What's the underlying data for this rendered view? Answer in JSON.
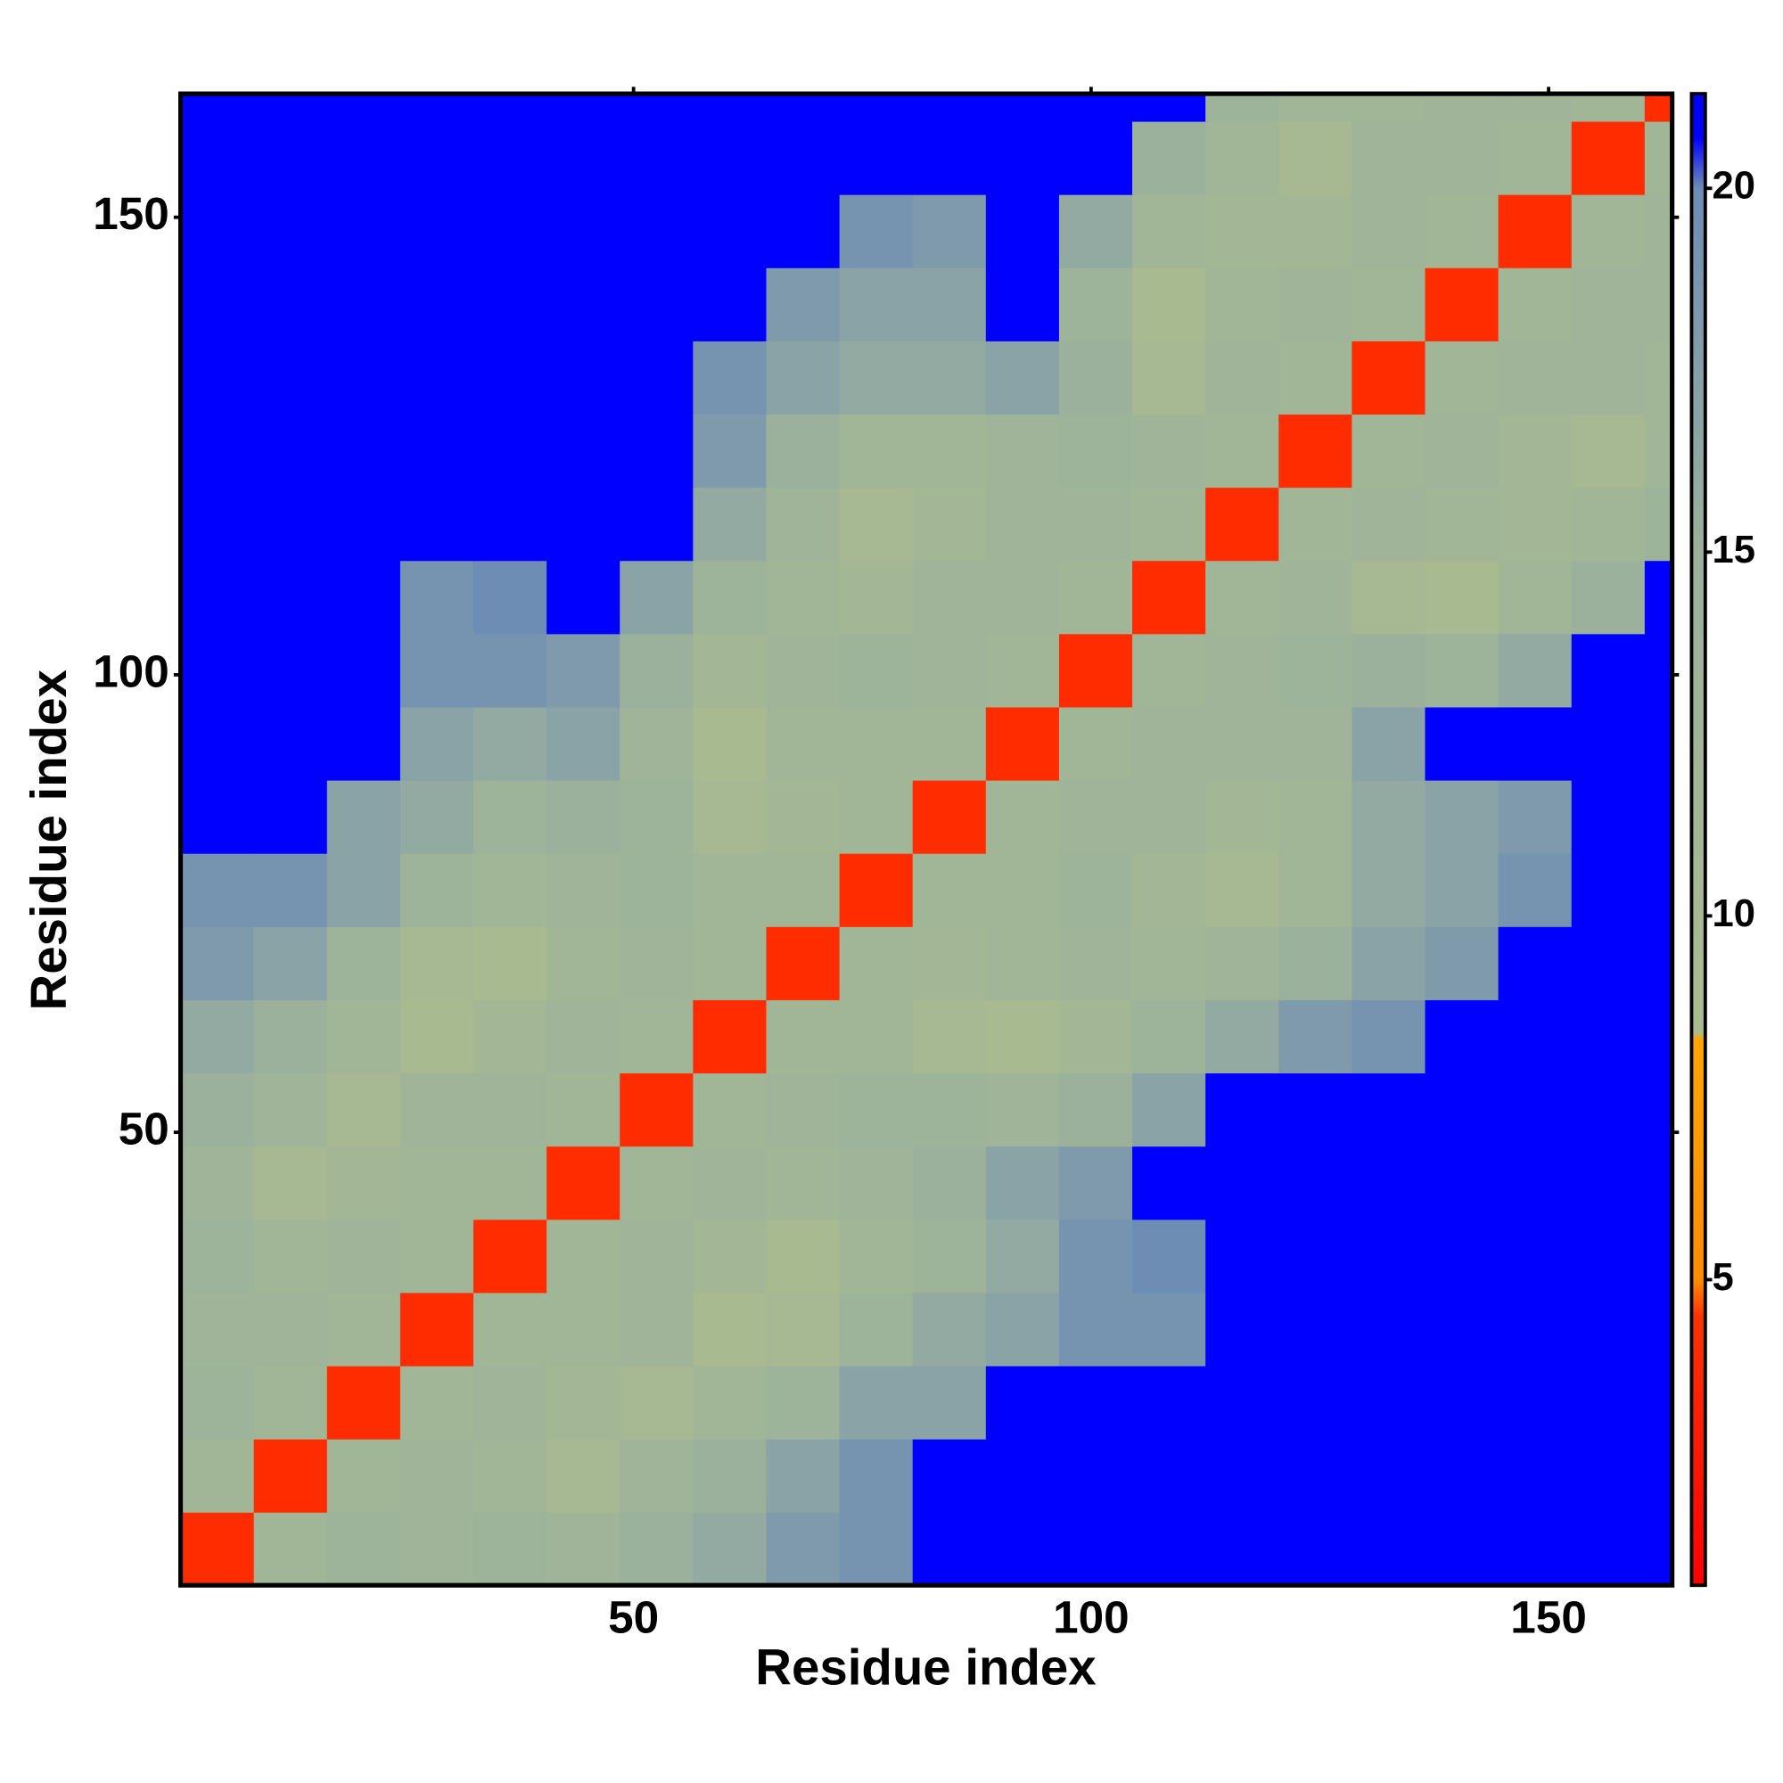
{
  "chart_data": {
    "type": "heatmap",
    "xlabel": "Residue index",
    "ylabel": "Residue index",
    "xlim": [
      0.5,
      163.5
    ],
    "ylim": [
      0.5,
      163.5
    ],
    "xticks": [
      50,
      100,
      150
    ],
    "yticks": [
      50,
      100,
      150
    ],
    "xbins": [
      0.5,
      8.5,
      16.5,
      24.5,
      32.5,
      40.5,
      48.5,
      56.5,
      64.5,
      72.5,
      80.5,
      88.5,
      96.5,
      104.5,
      112.5,
      120.5,
      128.5,
      136.5,
      144.5,
      152.5,
      160.5,
      163.5
    ],
    "ybins": [
      0.5,
      8.5,
      16.5,
      24.5,
      32.5,
      40.5,
      48.5,
      56.5,
      64.5,
      72.5,
      80.5,
      88.5,
      96.5,
      104.5,
      112.5,
      120.5,
      128.5,
      136.5,
      144.5,
      152.5,
      160.5,
      163.5
    ],
    "values": [
      [
        4,
        12,
        14,
        13,
        14,
        13,
        15,
        16,
        18,
        19,
        21,
        21,
        21,
        21,
        21,
        21,
        21,
        21,
        21,
        21,
        21
      ],
      [
        12,
        4,
        12,
        13,
        12,
        10,
        13,
        15,
        17,
        19,
        21,
        21,
        21,
        21,
        21,
        21,
        21,
        21,
        21,
        21,
        21
      ],
      [
        14,
        12,
        4,
        12,
        13,
        11,
        10,
        12,
        14,
        17,
        17,
        21,
        21,
        21,
        21,
        21,
        21,
        21,
        21,
        21,
        21
      ],
      [
        13,
        13,
        12,
        4,
        12,
        12,
        13,
        9,
        10,
        14,
        16,
        17,
        19,
        19,
        21,
        21,
        21,
        21,
        21,
        21,
        21
      ],
      [
        14,
        12,
        13,
        12,
        4,
        12,
        13,
        11,
        9,
        12,
        14,
        16,
        19,
        20,
        21,
        21,
        21,
        21,
        21,
        21,
        21
      ],
      [
        13,
        10,
        11,
        12,
        12,
        4,
        12,
        13,
        12,
        13,
        15,
        17,
        18,
        21,
        21,
        21,
        21,
        21,
        21,
        21,
        21
      ],
      [
        15,
        13,
        10,
        13,
        13,
        12,
        4,
        12,
        13,
        14,
        14,
        13,
        15,
        17,
        21,
        21,
        21,
        21,
        21,
        21,
        21
      ],
      [
        16,
        15,
        12,
        9,
        11,
        13,
        12,
        4,
        12,
        12,
        10,
        9,
        11,
        14,
        16,
        18,
        19,
        21,
        21,
        21,
        21
      ],
      [
        18,
        17,
        14,
        10,
        9,
        12,
        13,
        12,
        4,
        12,
        11,
        12,
        13,
        12,
        13,
        15,
        17,
        18,
        21,
        21,
        21
      ],
      [
        19,
        19,
        17,
        14,
        12,
        13,
        14,
        12,
        12,
        4,
        12,
        12,
        14,
        11,
        10,
        12,
        16,
        17,
        19,
        21,
        21
      ],
      [
        21,
        21,
        17,
        16,
        14,
        15,
        14,
        10,
        11,
        12,
        4,
        12,
        13,
        13,
        11,
        12,
        16,
        17,
        18,
        21,
        21
      ],
      [
        21,
        21,
        21,
        17,
        16,
        17,
        13,
        9,
        12,
        12,
        12,
        4,
        12,
        13,
        13,
        13,
        17,
        21,
        21,
        21,
        21
      ],
      [
        21,
        21,
        21,
        19,
        19,
        18,
        15,
        11,
        13,
        14,
        13,
        12,
        4,
        12,
        13,
        14,
        15,
        14,
        16,
        21,
        21
      ],
      [
        21,
        21,
        21,
        19,
        20,
        21,
        17,
        14,
        12,
        11,
        13,
        13,
        12,
        4,
        12,
        13,
        10,
        9,
        12,
        15,
        21
      ],
      [
        21,
        21,
        21,
        21,
        21,
        21,
        21,
        16,
        13,
        10,
        11,
        13,
        13,
        12,
        4,
        12,
        13,
        12,
        11,
        12,
        14
      ],
      [
        21,
        21,
        21,
        21,
        21,
        21,
        21,
        18,
        15,
        12,
        12,
        13,
        14,
        13,
        12,
        4,
        12,
        13,
        11,
        10,
        12
      ],
      [
        21,
        21,
        21,
        21,
        21,
        21,
        21,
        19,
        17,
        16,
        16,
        17,
        15,
        10,
        13,
        12,
        4,
        12,
        13,
        13,
        12
      ],
      [
        21,
        21,
        21,
        21,
        21,
        21,
        21,
        21,
        18,
        17,
        17,
        21,
        14,
        9,
        12,
        13,
        12,
        4,
        12,
        13,
        13
      ],
      [
        21,
        21,
        21,
        21,
        21,
        21,
        21,
        21,
        21,
        19,
        18,
        21,
        16,
        12,
        11,
        11,
        13,
        12,
        4,
        12,
        13
      ],
      [
        21,
        21,
        21,
        21,
        21,
        21,
        21,
        21,
        21,
        21,
        21,
        21,
        21,
        15,
        12,
        10,
        13,
        13,
        12,
        4,
        12
      ],
      [
        21,
        21,
        21,
        21,
        21,
        21,
        21,
        21,
        21,
        21,
        21,
        21,
        21,
        21,
        14,
        12,
        12,
        13,
        13,
        12,
        4
      ]
    ],
    "colorbar": {
      "zlim": [
        0.8,
        21.3
      ],
      "ticks": [
        5,
        10,
        15,
        20
      ]
    },
    "colorscale": [
      [
        0.8,
        "#ff0000"
      ],
      [
        4.5,
        "#ff3300"
      ],
      [
        5,
        "#ff8c00"
      ],
      [
        8.3,
        "#ffa500"
      ],
      [
        8.4,
        "#a9bb8f"
      ],
      [
        15,
        "#9bb19c"
      ],
      [
        20,
        "#6d8db5"
      ],
      [
        20.7,
        "#0000ff"
      ]
    ]
  }
}
